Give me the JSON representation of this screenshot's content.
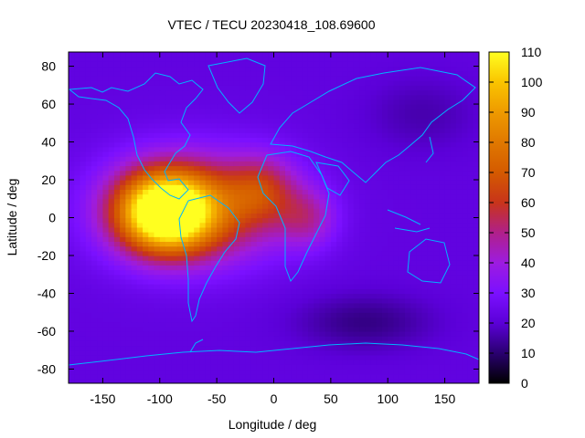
{
  "chart_data": {
    "type": "heatmap",
    "title": "VTEC / TECU 20230418_108.69600",
    "xlabel": "Longitude / deg",
    "ylabel": "Latitude / deg",
    "xlim": [
      -180,
      180
    ],
    "ylim": [
      -87.5,
      87.5
    ],
    "x_ticks": [
      -150,
      -100,
      -50,
      0,
      50,
      100,
      150
    ],
    "y_ticks": [
      -80,
      -60,
      -40,
      -20,
      0,
      20,
      40,
      60,
      80
    ],
    "colorbar": {
      "range": [
        0,
        110
      ],
      "ticks": [
        0,
        10,
        20,
        30,
        40,
        50,
        60,
        70,
        80,
        90,
        100,
        110
      ],
      "palette_stops": [
        {
          "v": 0,
          "color": "#000000"
        },
        {
          "v": 10,
          "color": "#2a0070"
        },
        {
          "v": 20,
          "color": "#5b00d8"
        },
        {
          "v": 30,
          "color": "#7b10ff"
        },
        {
          "v": 40,
          "color": "#9d1ce0"
        },
        {
          "v": 50,
          "color": "#b0208a"
        },
        {
          "v": 60,
          "color": "#c8341a"
        },
        {
          "v": 70,
          "color": "#d45a00"
        },
        {
          "v": 80,
          "color": "#e07800"
        },
        {
          "v": 90,
          "color": "#ee9a00"
        },
        {
          "v": 100,
          "color": "#fac400"
        },
        {
          "v": 110,
          "color": "#ffff20"
        }
      ]
    },
    "field": {
      "background_tecu": 22,
      "features": [
        {
          "name": "equatorial-anomaly-core",
          "lon": -95,
          "lat": 3,
          "peak_tecu": 88,
          "lon_spread": 40,
          "lat_spread": 20
        },
        {
          "name": "equatorial-band",
          "lon": -70,
          "lat": 5,
          "peak_tecu": 45,
          "lon_spread": 75,
          "lat_spread": 28
        },
        {
          "name": "west-africa-lobe",
          "lon": -10,
          "lat": 15,
          "peak_tecu": 25,
          "lon_spread": 30,
          "lat_spread": 18
        },
        {
          "name": "central-africa-lobe",
          "lon": 30,
          "lat": 0,
          "peak_tecu": 20,
          "lon_spread": 25,
          "lat_spread": 16
        },
        {
          "name": "southern-dip",
          "lon": 80,
          "lat": -55,
          "peak_tecu": -10,
          "lon_spread": 60,
          "lat_spread": 15
        },
        {
          "name": "northern-dip",
          "lon": 130,
          "lat": 55,
          "peak_tecu": -6,
          "lon_spread": 50,
          "lat_spread": 20
        }
      ]
    },
    "overlay": "coastlines"
  }
}
